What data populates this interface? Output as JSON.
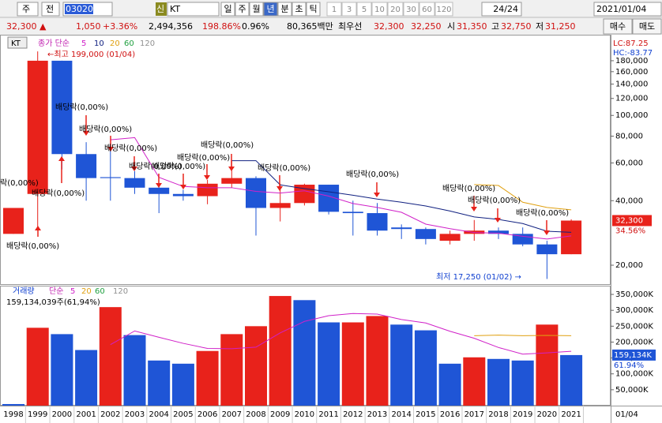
{
  "toolbar": {
    "market": "주",
    "type": "전",
    "code": "030200",
    "new": "신",
    "name": "KT",
    "periods": [
      "일",
      "주",
      "월",
      "년",
      "분",
      "초",
      "틱"
    ],
    "intervals": [
      "1",
      "3",
      "5",
      "10",
      "20",
      "30",
      "60",
      "120"
    ],
    "count": "24/24",
    "date": "2021/01/04"
  },
  "quote": {
    "price": "32,300 ▲",
    "change": "1,050",
    "rate": "+3.36%",
    "volume": "2,494,356",
    "vol_ratio": "198.86%",
    "turnover": "0.96%",
    "amount": "80,365백만",
    "best_label": "최우선",
    "ask": "32,300",
    "bid": "32,250",
    "open_label": "시",
    "open": "31,350",
    "high_label": "고",
    "high": "32,750",
    "low_label": "저",
    "low": "31,250",
    "buy": "매수",
    "sell": "매도"
  },
  "chart_data": [
    {
      "type": "candlestick",
      "title": "KT",
      "legend_label": "종가 단순",
      "lc_label": "LC:87.25",
      "hc_label": "HC:-83.77",
      "log_scale": true,
      "up_color": "#e8221b",
      "down_color": "#1f55d6",
      "open": [
        28000,
        43000,
        180000,
        66000,
        51500,
        51000,
        46000,
        43000,
        42000,
        48000,
        51000,
        37000,
        39000,
        47500,
        35500,
        35000,
        30000,
        29500,
        26000,
        28000,
        29000,
        28000,
        25000,
        22500
      ],
      "high": [
        37000,
        199000,
        180000,
        75000,
        74000,
        55000,
        48000,
        45000,
        50000,
        62000,
        52000,
        48000,
        48000,
        47500,
        40000,
        39000,
        31000,
        30000,
        29000,
        32500,
        30000,
        30000,
        26000,
        32750
      ],
      "low": [
        28000,
        29000,
        56000,
        40000,
        40000,
        43000,
        35000,
        40000,
        38500,
        46000,
        27500,
        32000,
        38000,
        34500,
        27500,
        27500,
        26500,
        25000,
        25000,
        26000,
        26500,
        24500,
        17250,
        22500
      ],
      "close": [
        37000,
        180000,
        66000,
        51000,
        51000,
        46000,
        43000,
        42000,
        48000,
        51000,
        37000,
        39000,
        47500,
        35500,
        35000,
        29000,
        29500,
        26500,
        28000,
        29000,
        28000,
        25000,
        22500,
        32300
      ],
      "ma": [
        {
          "name": "5",
          "color": "#d020c8",
          "values": [
            null,
            null,
            null,
            null,
            77000,
            78800,
            51400,
            46600,
            46000,
            46000,
            44200,
            43400,
            44500,
            42000,
            38800,
            37200,
            35300,
            31100,
            29600,
            28400,
            28200,
            27300,
            26500,
            27400
          ]
        },
        {
          "name": "10",
          "color": "#102080",
          "values": [
            null,
            null,
            null,
            null,
            null,
            null,
            null,
            null,
            null,
            61500,
            61500,
            47400,
            45550,
            44000,
            42400,
            40700,
            39350,
            37800,
            35800,
            33600,
            32700,
            31300,
            28800,
            28480
          ]
        },
        {
          "name": "20",
          "color": "#e0a010",
          "values": [
            null,
            null,
            null,
            null,
            null,
            null,
            null,
            null,
            null,
            null,
            null,
            null,
            null,
            null,
            null,
            null,
            null,
            null,
            null,
            47550,
            47100,
            39350,
            37200,
            36240
          ]
        },
        {
          "name": "60",
          "color": "#20a040",
          "values": [
            null,
            null,
            null,
            null,
            null,
            null,
            null,
            null,
            null,
            null,
            null,
            null,
            null,
            null,
            null,
            null,
            null,
            null,
            null,
            null,
            null,
            null,
            null,
            null
          ]
        },
        {
          "name": "120",
          "color": "#909090",
          "values": [
            null,
            null,
            null,
            null,
            null,
            null,
            null,
            null,
            null,
            null,
            null,
            null,
            null,
            null,
            null,
            null,
            null,
            null,
            null,
            null,
            null,
            null,
            null,
            null
          ]
        }
      ],
      "ylim": [
        16600,
        238000
      ],
      "yticks": [
        {
          "value": 20000,
          "label": "20,000"
        },
        {
          "value": 40000,
          "label": "40,000"
        },
        {
          "value": 60000,
          "label": "60,000"
        },
        {
          "value": 80000,
          "label": "80,000"
        },
        {
          "value": 100000,
          "label": "100,000"
        },
        {
          "value": 120000,
          "label": "120,000"
        },
        {
          "value": 140000,
          "label": "140,000"
        },
        {
          "value": 160000,
          "label": "160,000"
        },
        {
          "value": 180000,
          "label": "180,000"
        }
      ],
      "high_note": "←최고 199,000 (01/04)",
      "low_note": "최저 17,250 (01/02) →",
      "dividends": [
        "락(0,00%)",
        "배당락(0,00%)",
        "배당락(0,00%)",
        "배당락(0,00%)",
        "배당락(0,00%)",
        "배당락(0,00%)",
        "배당락(0,00%)",
        "배당락(0,00%)",
        "배당락(0,00%)",
        "배당락(0,00%)",
        "배당락(0,00%)",
        "배당락(0,00%)",
        "배당락(0,00%)",
        "배당락(0,00%)",
        "배당락(0,00%)"
      ],
      "last_label": {
        "value": 32300,
        "label": "32,300"
      },
      "last_rate": "34.56%"
    },
    {
      "type": "bar",
      "legend_label": "거래량",
      "ma_label": "단순",
      "info": "159,134,039주(61,94%)",
      "categories": [
        "1998",
        "1999",
        "2000",
        "2001",
        "2002",
        "2003",
        "2004",
        "2005",
        "2006",
        "2007",
        "2008",
        "2009",
        "2010",
        "2011",
        "2012",
        "2013",
        "2014",
        "2015",
        "2016",
        "2017",
        "2018",
        "2019",
        "2020",
        "2021"
      ],
      "x_last": "01/04",
      "values": [
        5000,
        245000,
        225000,
        175000,
        310000,
        222000,
        142000,
        132000,
        172000,
        225000,
        250000,
        345000,
        332000,
        262000,
        262000,
        282000,
        255000,
        237000,
        132000,
        152000,
        147000,
        142000,
        255000,
        159134
      ],
      "colors": [
        "#1f55d6",
        "#e8221b",
        "#1f55d6",
        "#1f55d6",
        "#e8221b",
        "#1f55d6",
        "#1f55d6",
        "#1f55d6",
        "#e8221b",
        "#e8221b",
        "#e8221b",
        "#e8221b",
        "#1f55d6",
        "#1f55d6",
        "#e8221b",
        "#e8221b",
        "#1f55d6",
        "#1f55d6",
        "#1f55d6",
        "#e8221b",
        "#1f55d6",
        "#1f55d6",
        "#e8221b",
        "#1f55d6"
      ],
      "ma": [
        {
          "name": "5",
          "color": "#d020c8",
          "values": [
            null,
            null,
            null,
            null,
            192000,
            235000,
            215000,
            196000,
            180000,
            179000,
            184000,
            229000,
            265000,
            283000,
            290000,
            288000,
            271000,
            260000,
            234000,
            212000,
            183000,
            162000,
            166000,
            171000
          ]
        },
        {
          "name": "20",
          "color": "#e0a010",
          "values": [
            null,
            null,
            null,
            null,
            null,
            null,
            null,
            null,
            null,
            null,
            null,
            null,
            null,
            null,
            null,
            null,
            null,
            null,
            null,
            220000,
            222000,
            220000,
            221000,
            220000
          ]
        },
        {
          "name": "60",
          "color": "#20a040",
          "values": [
            null,
            null,
            null,
            null,
            null,
            null,
            null,
            null,
            null,
            null,
            null,
            null,
            null,
            null,
            null,
            null,
            null,
            null,
            null,
            null,
            null,
            null,
            null,
            null
          ]
        },
        {
          "name": "120",
          "color": "#909090",
          "values": [
            null,
            null,
            null,
            null,
            null,
            null,
            null,
            null,
            null,
            null,
            null,
            null,
            null,
            null,
            null,
            null,
            null,
            null,
            null,
            null,
            null,
            null,
            null,
            null
          ]
        }
      ],
      "ylim": [
        0,
        370000
      ],
      "yticks": [
        {
          "value": 50000,
          "label": "50,000K"
        },
        {
          "value": 100000,
          "label": "100,000K"
        },
        {
          "value": 150000,
          "label": "150,000K"
        },
        {
          "value": 200000,
          "label": "200,000K"
        },
        {
          "value": 250000,
          "label": "250,000K"
        },
        {
          "value": 300000,
          "label": "300,000K"
        },
        {
          "value": 350000,
          "label": "350,000K"
        }
      ],
      "last_label": {
        "value": 159134,
        "label": "159,134K"
      },
      "last_rate": "61.94%"
    }
  ]
}
